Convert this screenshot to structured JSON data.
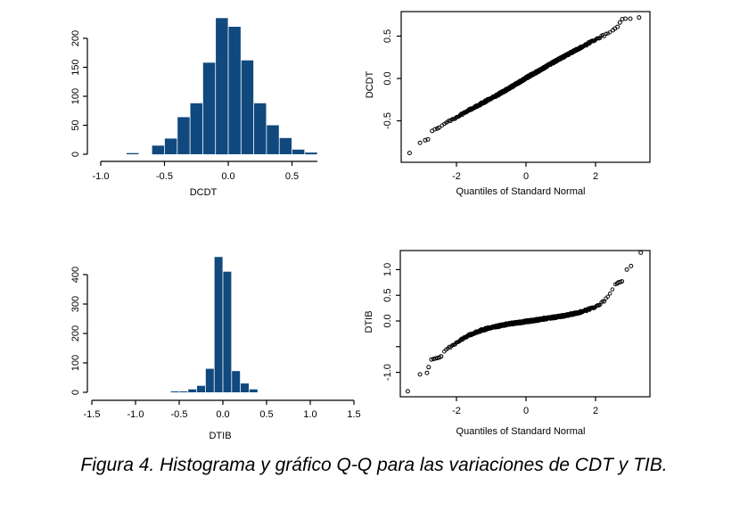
{
  "figure": {
    "caption": "Figura 4. Histograma y gráfico Q-Q para las variaciones de CDT y TIB."
  },
  "colors": {
    "bar_fill": "#11497e",
    "axis": "#000000",
    "point_stroke": "#000000",
    "background": "#ffffff"
  },
  "chart_data": [
    {
      "id": "hist-dcdt",
      "type": "bar",
      "title": "",
      "xlabel": "DCDT",
      "ylabel": "",
      "bins": {
        "start": -0.8,
        "width": 0.1
      },
      "categories": [
        "-0.8",
        "-0.7",
        "-0.6",
        "-0.5",
        "-0.4",
        "-0.3",
        "-0.2",
        "-0.1",
        "0.0",
        "0.1",
        "0.2",
        "0.3",
        "0.4",
        "0.5",
        "0.6"
      ],
      "values": [
        2,
        0,
        15,
        27,
        64,
        88,
        158,
        235,
        220,
        162,
        88,
        50,
        28,
        8,
        3
      ],
      "xlim": [
        -1.0,
        0.7
      ],
      "ylim": [
        0,
        200
      ],
      "grid": false,
      "x_ticks": [
        {
          "v": -1.0,
          "label": "-1.0"
        },
        {
          "v": -0.5,
          "label": "-0.5"
        },
        {
          "v": 0.0,
          "label": "0.0"
        },
        {
          "v": 0.5,
          "label": "0.5"
        }
      ],
      "y_ticks": [
        {
          "v": 0,
          "label": "0"
        },
        {
          "v": 50,
          "label": "50"
        },
        {
          "v": 100,
          "label": "100"
        },
        {
          "v": 150,
          "label": "150"
        },
        {
          "v": 200,
          "label": "200"
        }
      ]
    },
    {
      "id": "qq-dcdt",
      "type": "scatter",
      "title": "",
      "xlabel": "Quantiles of Standard Normal",
      "ylabel": "DCDT",
      "xlim": [
        -3.5,
        3.5
      ],
      "ylim": [
        -0.95,
        0.78
      ],
      "grid": false,
      "x_ticks": [
        {
          "v": -2,
          "label": "-2"
        },
        {
          "v": 0,
          "label": "0"
        },
        {
          "v": 2,
          "label": "2"
        }
      ],
      "y_ticks": [
        {
          "v": 0.5,
          "label": "0.5"
        },
        {
          "v": 0.0,
          "label": "0.0"
        },
        {
          "v": -0.5,
          "label": "-0.5"
        }
      ],
      "marker_count": 700,
      "band": [
        -2.45,
        2.45
      ],
      "trend": [
        [
          -2.45,
          -0.56
        ],
        [
          -2.3,
          -0.53
        ],
        [
          -2.1,
          -0.48
        ],
        [
          -1.9,
          -0.435
        ],
        [
          -1.7,
          -0.39
        ],
        [
          -1.5,
          -0.345
        ],
        [
          -1.3,
          -0.3
        ],
        [
          -1.1,
          -0.255
        ],
        [
          -0.9,
          -0.215
        ],
        [
          -0.7,
          -0.165
        ],
        [
          -0.5,
          -0.12
        ],
        [
          -0.3,
          -0.07
        ],
        [
          -0.1,
          -0.02
        ],
        [
          0.1,
          0.03
        ],
        [
          0.3,
          0.075
        ],
        [
          0.5,
          0.12
        ],
        [
          0.7,
          0.17
        ],
        [
          0.9,
          0.215
        ],
        [
          1.1,
          0.26
        ],
        [
          1.3,
          0.305
        ],
        [
          1.5,
          0.35
        ],
        [
          1.7,
          0.39
        ],
        [
          1.9,
          0.44
        ],
        [
          2.1,
          0.48
        ],
        [
          2.3,
          0.52
        ],
        [
          2.45,
          0.555
        ]
      ],
      "outliers": [
        [
          -3.35,
          -0.88
        ],
        [
          -3.05,
          -0.76
        ],
        [
          -2.9,
          -0.73
        ],
        [
          -2.82,
          -0.72
        ],
        [
          -2.7,
          -0.62
        ],
        [
          -2.62,
          -0.6
        ],
        [
          -2.55,
          -0.59
        ],
        [
          -2.5,
          -0.58
        ],
        [
          2.5,
          0.57
        ],
        [
          2.56,
          0.59
        ],
        [
          2.63,
          0.61
        ],
        [
          2.7,
          0.66
        ],
        [
          2.77,
          0.7
        ],
        [
          2.86,
          0.705
        ],
        [
          3.0,
          0.705
        ],
        [
          3.25,
          0.72
        ]
      ]
    },
    {
      "id": "hist-dtib",
      "type": "bar",
      "title": "",
      "xlabel": "DTIB",
      "ylabel": "",
      "bins": {
        "start": -0.6,
        "width": 0.1
      },
      "categories": [
        "-0.6",
        "-0.5",
        "-0.4",
        "-0.3",
        "-0.2",
        "-0.1",
        "0.0",
        "0.1",
        "0.2",
        "0.3"
      ],
      "values": [
        3,
        3,
        10,
        22,
        80,
        460,
        410,
        72,
        30,
        10
      ],
      "xlim": [
        -1.5,
        1.5
      ],
      "ylim": [
        0,
        400
      ],
      "grid": false,
      "x_ticks": [
        {
          "v": -1.5,
          "label": "-1.5"
        },
        {
          "v": -1.0,
          "label": "-1.0"
        },
        {
          "v": -0.5,
          "label": "-0.5"
        },
        {
          "v": 0.0,
          "label": "0.0"
        },
        {
          "v": 0.5,
          "label": "0.5"
        },
        {
          "v": 1.0,
          "label": "1.0"
        },
        {
          "v": 1.5,
          "label": "1.5"
        }
      ],
      "y_ticks": [
        {
          "v": 0,
          "label": "0"
        },
        {
          "v": 100,
          "label": "100"
        },
        {
          "v": 200,
          "label": "200"
        },
        {
          "v": 300,
          "label": "300"
        },
        {
          "v": 400,
          "label": "400"
        }
      ]
    },
    {
      "id": "qq-dtib",
      "type": "scatter",
      "title": "",
      "xlabel": "Quantiles of Standard Normal",
      "ylabel": "DTIB",
      "xlim": [
        -3.5,
        3.5
      ],
      "ylim": [
        -1.45,
        1.4
      ],
      "grid": false,
      "x_ticks": [
        {
          "v": -2,
          "label": "-2"
        },
        {
          "v": 0,
          "label": "0"
        },
        {
          "v": 2,
          "label": "2"
        }
      ],
      "y_ticks": [
        {
          "v": 1.0,
          "label": "1.0"
        },
        {
          "v": 0.5,
          "label": "0.5"
        },
        {
          "v": 0.0,
          "label": "0.0"
        },
        {
          "v": -0.5,
          "label": ""
        },
        {
          "v": -1.0,
          "label": "-1.0"
        }
      ],
      "marker_count": 700,
      "band": [
        -2.4,
        2.58
      ],
      "trend": [
        [
          -2.4,
          -0.63
        ],
        [
          -2.3,
          -0.57
        ],
        [
          -2.2,
          -0.52
        ],
        [
          -2.1,
          -0.47
        ],
        [
          -2.0,
          -0.42
        ],
        [
          -1.9,
          -0.38
        ],
        [
          -1.8,
          -0.34
        ],
        [
          -1.7,
          -0.3
        ],
        [
          -1.6,
          -0.27
        ],
        [
          -1.5,
          -0.24
        ],
        [
          -1.4,
          -0.21
        ],
        [
          -1.3,
          -0.185
        ],
        [
          -1.2,
          -0.165
        ],
        [
          -1.1,
          -0.145
        ],
        [
          -1.0,
          -0.13
        ],
        [
          -0.9,
          -0.115
        ],
        [
          -0.8,
          -0.1
        ],
        [
          -0.7,
          -0.085
        ],
        [
          -0.6,
          -0.07
        ],
        [
          -0.5,
          -0.06
        ],
        [
          -0.4,
          -0.05
        ],
        [
          -0.3,
          -0.04
        ],
        [
          -0.2,
          -0.03
        ],
        [
          -0.1,
          -0.02
        ],
        [
          0.0,
          -0.01
        ],
        [
          0.1,
          0.0
        ],
        [
          0.2,
          0.01
        ],
        [
          0.3,
          0.02
        ],
        [
          0.4,
          0.03
        ],
        [
          0.6,
          0.05
        ],
        [
          0.8,
          0.07
        ],
        [
          1.0,
          0.09
        ],
        [
          1.2,
          0.115
        ],
        [
          1.4,
          0.145
        ],
        [
          1.6,
          0.18
        ],
        [
          1.8,
          0.225
        ],
        [
          2.0,
          0.28
        ],
        [
          2.1,
          0.315
        ],
        [
          2.2,
          0.36
        ],
        [
          2.3,
          0.43
        ],
        [
          2.4,
          0.52
        ],
        [
          2.5,
          0.63
        ],
        [
          2.58,
          0.7
        ]
      ],
      "outliers": [
        [
          -3.4,
          -1.37
        ],
        [
          -3.05,
          -1.04
        ],
        [
          -2.85,
          -1.01
        ],
        [
          -2.8,
          -0.9
        ],
        [
          -2.72,
          -0.75
        ],
        [
          -2.66,
          -0.74
        ],
        [
          -2.6,
          -0.73
        ],
        [
          -2.54,
          -0.72
        ],
        [
          -2.49,
          -0.71
        ],
        [
          -2.44,
          -0.69
        ],
        [
          2.62,
          0.73
        ],
        [
          2.66,
          0.75
        ],
        [
          2.71,
          0.76
        ],
        [
          2.76,
          0.77
        ],
        [
          2.9,
          1.0
        ],
        [
          3.02,
          1.07
        ],
        [
          3.3,
          1.33
        ]
      ]
    }
  ]
}
